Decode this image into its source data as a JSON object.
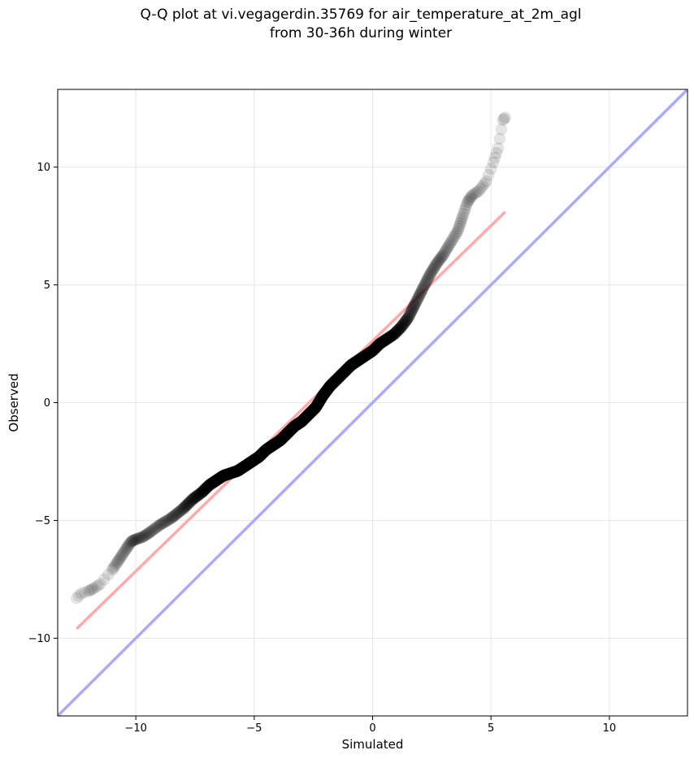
{
  "chart_data": {
    "type": "scatter",
    "title_lines": [
      "Q-Q plot at vi.vegagerdin.35769 for air_temperature_at_2m_agl",
      "from 30-36h during winter"
    ],
    "xlabel": "Simulated",
    "ylabel": "Observed",
    "xlim": [
      -13.3,
      13.3
    ],
    "ylim": [
      -13.3,
      13.3
    ],
    "xticks": [
      -10,
      -5,
      0,
      5,
      10
    ],
    "yticks": [
      -10,
      -5,
      0,
      5,
      10
    ],
    "tick_labels": [
      "−10",
      "−5",
      "0",
      "5",
      "10"
    ],
    "grid": true,
    "quantile_points": {
      "x": [
        -12.5,
        -12.3,
        -12.0,
        -11.8,
        -11.5,
        -11.0,
        -10.8,
        -10.6,
        -10.4,
        -10.2,
        -10.0,
        -9.7,
        -9.4,
        -9.0,
        -8.5,
        -8.0,
        -7.6,
        -7.2,
        -6.9,
        -6.6,
        -6.3,
        -6.0,
        -5.7,
        -5.4,
        -5.1,
        -4.8,
        -4.5,
        -4.2,
        -3.9,
        -3.6,
        -3.3,
        -3.0,
        -2.7,
        -2.4,
        -2.1,
        -1.8,
        -1.5,
        -1.2,
        -0.9,
        -0.6,
        -0.3,
        0.0,
        0.3,
        0.6,
        0.9,
        1.2,
        1.5,
        1.8,
        2.1,
        2.4,
        2.7,
        3.0,
        3.3,
        3.6,
        3.8,
        4.0,
        4.2,
        4.5,
        4.8,
        5.1,
        5.3,
        5.5,
        5.6
      ],
      "y": [
        -8.3,
        -8.1,
        -8.0,
        -7.9,
        -7.7,
        -7.1,
        -6.8,
        -6.5,
        -6.2,
        -5.9,
        -5.8,
        -5.7,
        -5.5,
        -5.2,
        -4.9,
        -4.5,
        -4.1,
        -3.8,
        -3.5,
        -3.3,
        -3.1,
        -3.0,
        -2.9,
        -2.7,
        -2.5,
        -2.3,
        -2.0,
        -1.8,
        -1.6,
        -1.3,
        -1.0,
        -0.8,
        -0.5,
        -0.2,
        0.3,
        0.7,
        1.0,
        1.3,
        1.6,
        1.8,
        2.0,
        2.2,
        2.5,
        2.7,
        2.9,
        3.2,
        3.6,
        4.2,
        4.8,
        5.4,
        5.9,
        6.3,
        6.8,
        7.3,
        7.9,
        8.5,
        8.8,
        9.0,
        9.4,
        10.2,
        10.8,
        12.0,
        12.1
      ]
    },
    "series": [
      {
        "kind": "fit-line",
        "x": [
          -12.5,
          5.6
        ],
        "y": [
          -9.6,
          8.1
        ],
        "color": "#ffaaaa"
      },
      {
        "kind": "identity-line",
        "x": [
          -13.3,
          13.3
        ],
        "y": [
          -13.3,
          13.3
        ],
        "color": "#aaaaff"
      }
    ],
    "point_color": "#000000"
  }
}
